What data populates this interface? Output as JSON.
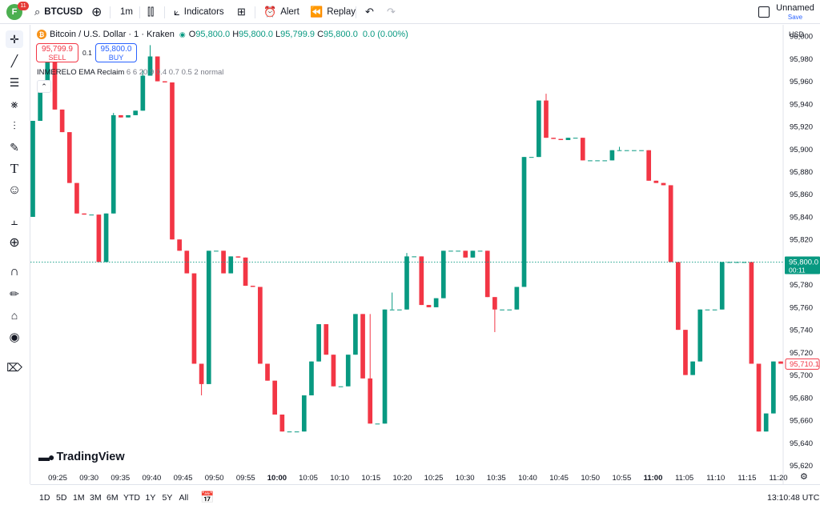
{
  "topbar": {
    "avatar_letter": "F",
    "notifications": "11",
    "symbol": "BTCUSD",
    "interval": "1m",
    "indicators_label": "Indicators",
    "alert_label": "Alert",
    "replay_label": "Replay",
    "layout_name": "Unnamed",
    "save_label": "Save"
  },
  "legend": {
    "title": "Bitcoin / U.S. Dollar · 1 · Kraken",
    "o_label": "O",
    "o_value": "95,800.0",
    "h_label": "H",
    "h_value": "95,800.0",
    "l_label": "L",
    "l_value": "95,799.9",
    "c_label": "C",
    "c_value": "95,800.0",
    "change": "0.0 (0.00%)"
  },
  "trade": {
    "sell_price": "95,799.9",
    "sell_label": "SELL",
    "spread": "0.1",
    "buy_price": "95,800.0",
    "buy_label": "BUY"
  },
  "indicator": {
    "name": "INMERELO EMA Reclaim",
    "params": "6 6 20 9 0.4 0.7 0.5 2 normal"
  },
  "watermark": "TradingView",
  "currency": "USD",
  "price_labels": {
    "current": "95,800.0",
    "countdown": "00:11",
    "alt": "95,710.1"
  },
  "bottombar": {
    "ranges": [
      "1D",
      "5D",
      "1M",
      "3M",
      "6M",
      "YTD",
      "1Y",
      "5Y",
      "All"
    ],
    "clock": "13:10:48 UTC"
  },
  "colors": {
    "up": "#089981",
    "down": "#f23645",
    "up_bright": "#22d08d",
    "line": "#089981"
  },
  "icons": [
    "crosshair-icon",
    "trend-line-icon",
    "fib-icon",
    "pattern-icon",
    "projection-icon",
    "brush-icon",
    "text-icon",
    "emoji-icon",
    "ruler-icon",
    "zoom-in-icon",
    "magnet-icon",
    "lock-drawing-icon",
    "unlock-icon",
    "eye-icon",
    "trash-icon"
  ],
  "chart_data": {
    "type": "candlestick",
    "y_ticks": [
      96000,
      95980,
      95960,
      95940,
      95920,
      95900,
      95880,
      95860,
      95840,
      95820,
      95800,
      95780,
      95760,
      95740,
      95720,
      95700,
      95680,
      95660,
      95640,
      95620
    ],
    "x_ticks": [
      "09:25",
      "09:30",
      "09:35",
      "09:40",
      "09:45",
      "09:50",
      "09:55",
      "10:00",
      "10:05",
      "10:10",
      "10:15",
      "10:20",
      "10:25",
      "10:30",
      "10:35",
      "10:40",
      "10:45",
      "10:50",
      "10:55",
      "11:00",
      "11:05",
      "11:10",
      "11:15",
      "11:20"
    ],
    "x_tick_bold": [
      "10:00",
      "11:00"
    ],
    "ylim": [
      95614,
      96010
    ],
    "current_price": 95800.0,
    "candles": [
      {
        "o": 95840,
        "h": 95925,
        "l": 95840,
        "c": 95925
      },
      {
        "o": 95925,
        "h": 95958,
        "l": 95925,
        "c": 95958
      },
      {
        "o": 95958,
        "h": 95990,
        "l": 95958,
        "c": 95985
      },
      {
        "o": 95990,
        "h": 95990,
        "l": 95935,
        "c": 95935
      },
      {
        "o": 95935,
        "h": 95935,
        "l": 95915,
        "c": 95915
      },
      {
        "o": 95915,
        "h": 95915,
        "l": 95870,
        "c": 95870
      },
      {
        "o": 95870,
        "h": 95870,
        "l": 95843,
        "c": 95843
      },
      {
        "o": 95843,
        "h": 95843,
        "l": 95842,
        "c": 95842
      },
      {
        "o": 95842,
        "h": 95842,
        "l": 95842,
        "c": 95842
      },
      {
        "o": 95842,
        "h": 95842,
        "l": 95800,
        "c": 95800
      },
      {
        "o": 95800,
        "h": 95843,
        "l": 95800,
        "c": 95843
      },
      {
        "o": 95843,
        "h": 95932,
        "l": 95843,
        "c": 95930
      },
      {
        "o": 95930,
        "h": 95930,
        "l": 95928,
        "c": 95928
      },
      {
        "o": 95928,
        "h": 95930,
        "l": 95928,
        "c": 95930
      },
      {
        "o": 95930,
        "h": 95934,
        "l": 95930,
        "c": 95934
      },
      {
        "o": 95934,
        "h": 95970,
        "l": 95934,
        "c": 95965
      },
      {
        "o": 95965,
        "h": 95992,
        "l": 95965,
        "c": 95982
      },
      {
        "o": 95982,
        "h": 95982,
        "l": 95960,
        "c": 95960
      },
      {
        "o": 95960,
        "h": 95960,
        "l": 95959,
        "c": 95959
      },
      {
        "o": 95959,
        "h": 95959,
        "l": 95820,
        "c": 95820
      },
      {
        "o": 95820,
        "h": 95820,
        "l": 95810,
        "c": 95810
      },
      {
        "o": 95810,
        "h": 95810,
        "l": 95790,
        "c": 95790
      },
      {
        "o": 95790,
        "h": 95790,
        "l": 95710,
        "c": 95710
      },
      {
        "o": 95710,
        "h": 95710,
        "l": 95682,
        "c": 95692
      },
      {
        "o": 95692,
        "h": 95810,
        "l": 95692,
        "c": 95810
      },
      {
        "o": 95810,
        "h": 95810,
        "l": 95810,
        "c": 95810
      },
      {
        "o": 95810,
        "h": 95810,
        "l": 95790,
        "c": 95790
      },
      {
        "o": 95790,
        "h": 95805,
        "l": 95790,
        "c": 95805
      },
      {
        "o": 95805,
        "h": 95805,
        "l": 95804,
        "c": 95804
      },
      {
        "o": 95804,
        "h": 95804,
        "l": 95779,
        "c": 95779
      },
      {
        "o": 95779,
        "h": 95779,
        "l": 95778,
        "c": 95778
      },
      {
        "o": 95778,
        "h": 95778,
        "l": 95710,
        "c": 95710
      },
      {
        "o": 95710,
        "h": 95710,
        "l": 95695,
        "c": 95695
      },
      {
        "o": 95695,
        "h": 95695,
        "l": 95665,
        "c": 95665
      },
      {
        "o": 95665,
        "h": 95665,
        "l": 95650,
        "c": 95650
      },
      {
        "o": 95650,
        "h": 95650,
        "l": 95650,
        "c": 95650
      },
      {
        "o": 95650,
        "h": 95650,
        "l": 95650,
        "c": 95650
      },
      {
        "o": 95650,
        "h": 95682,
        "l": 95650,
        "c": 95682
      },
      {
        "o": 95682,
        "h": 95712,
        "l": 95682,
        "c": 95712
      },
      {
        "o": 95712,
        "h": 95745,
        "l": 95712,
        "c": 95745
      },
      {
        "o": 95745,
        "h": 95745,
        "l": 95718,
        "c": 95718
      },
      {
        "o": 95718,
        "h": 95718,
        "l": 95690,
        "c": 95690
      },
      {
        "o": 95690,
        "h": 95690,
        "l": 95690,
        "c": 95690
      },
      {
        "o": 95690,
        "h": 95718,
        "l": 95690,
        "c": 95718
      },
      {
        "o": 95718,
        "h": 95754,
        "l": 95718,
        "c": 95754
      },
      {
        "o": 95754,
        "h": 95754,
        "l": 95697,
        "c": 95697
      },
      {
        "o": 95697,
        "h": 95754,
        "l": 95657,
        "c": 95657
      },
      {
        "o": 95657,
        "h": 95657,
        "l": 95657,
        "c": 95657
      },
      {
        "o": 95657,
        "h": 95758,
        "l": 95657,
        "c": 95758
      },
      {
        "o": 95758,
        "h": 95773,
        "l": 95758,
        "c": 95758
      },
      {
        "o": 95758,
        "h": 95758,
        "l": 95758,
        "c": 95758
      },
      {
        "o": 95758,
        "h": 95808,
        "l": 95758,
        "c": 95805
      },
      {
        "o": 95805,
        "h": 95805,
        "l": 95805,
        "c": 95805
      },
      {
        "o": 95805,
        "h": 95805,
        "l": 95762,
        "c": 95762
      },
      {
        "o": 95762,
        "h": 95762,
        "l": 95760,
        "c": 95760
      },
      {
        "o": 95760,
        "h": 95768,
        "l": 95760,
        "c": 95768
      },
      {
        "o": 95768,
        "h": 95810,
        "l": 95768,
        "c": 95810
      },
      {
        "o": 95810,
        "h": 95810,
        "l": 95810,
        "c": 95810
      },
      {
        "o": 95810,
        "h": 95810,
        "l": 95810,
        "c": 95810
      },
      {
        "o": 95810,
        "h": 95810,
        "l": 95804,
        "c": 95804
      },
      {
        "o": 95804,
        "h": 95810,
        "l": 95804,
        "c": 95810
      },
      {
        "o": 95810,
        "h": 95810,
        "l": 95810,
        "c": 95810
      },
      {
        "o": 95810,
        "h": 95810,
        "l": 95769,
        "c": 95769
      },
      {
        "o": 95769,
        "h": 95769,
        "l": 95738,
        "c": 95758
      },
      {
        "o": 95758,
        "h": 95758,
        "l": 95758,
        "c": 95758
      },
      {
        "o": 95758,
        "h": 95758,
        "l": 95758,
        "c": 95758
      },
      {
        "o": 95758,
        "h": 95778,
        "l": 95758,
        "c": 95778
      },
      {
        "o": 95778,
        "h": 95893,
        "l": 95778,
        "c": 95893
      },
      {
        "o": 95893,
        "h": 95893,
        "l": 95893,
        "c": 95893
      },
      {
        "o": 95893,
        "h": 95943,
        "l": 95893,
        "c": 95943
      },
      {
        "o": 95943,
        "h": 95949,
        "l": 95910,
        "c": 95910
      },
      {
        "o": 95910,
        "h": 95910,
        "l": 95909,
        "c": 95909
      },
      {
        "o": 95909,
        "h": 95909,
        "l": 95908,
        "c": 95908
      },
      {
        "o": 95908,
        "h": 95910,
        "l": 95908,
        "c": 95910
      },
      {
        "o": 95910,
        "h": 95910,
        "l": 95910,
        "c": 95910
      },
      {
        "o": 95910,
        "h": 95910,
        "l": 95890,
        "c": 95890
      },
      {
        "o": 95890,
        "h": 95890,
        "l": 95890,
        "c": 95890
      },
      {
        "o": 95890,
        "h": 95890,
        "l": 95890,
        "c": 95890
      },
      {
        "o": 95890,
        "h": 95890,
        "l": 95890,
        "c": 95890
      },
      {
        "o": 95890,
        "h": 95899,
        "l": 95890,
        "c": 95899
      },
      {
        "o": 95899,
        "h": 95902,
        "l": 95899,
        "c": 95899
      },
      {
        "o": 95899,
        "h": 95899,
        "l": 95899,
        "c": 95899
      },
      {
        "o": 95899,
        "h": 95899,
        "l": 95899,
        "c": 95899
      },
      {
        "o": 95899,
        "h": 95899,
        "l": 95899,
        "c": 95899
      },
      {
        "o": 95899,
        "h": 95899,
        "l": 95872,
        "c": 95872
      },
      {
        "o": 95872,
        "h": 95872,
        "l": 95870,
        "c": 95870
      },
      {
        "o": 95870,
        "h": 95870,
        "l": 95868,
        "c": 95868
      },
      {
        "o": 95868,
        "h": 95868,
        "l": 95800,
        "c": 95800
      },
      {
        "o": 95800,
        "h": 95800,
        "l": 95740,
        "c": 95740
      },
      {
        "o": 95740,
        "h": 95740,
        "l": 95700,
        "c": 95700
      },
      {
        "o": 95700,
        "h": 95712,
        "l": 95700,
        "c": 95712
      },
      {
        "o": 95712,
        "h": 95758,
        "l": 95712,
        "c": 95758
      },
      {
        "o": 95758,
        "h": 95758,
        "l": 95758,
        "c": 95758
      },
      {
        "o": 95758,
        "h": 95758,
        "l": 95758,
        "c": 95758
      },
      {
        "o": 95758,
        "h": 95800,
        "l": 95758,
        "c": 95800
      },
      {
        "o": 95800,
        "h": 95800,
        "l": 95800,
        "c": 95800
      },
      {
        "o": 95800,
        "h": 95800,
        "l": 95800,
        "c": 95800
      },
      {
        "o": 95800,
        "h": 95800,
        "l": 95800,
        "c": 95800
      },
      {
        "o": 95800,
        "h": 95800,
        "l": 95710,
        "c": 95710
      },
      {
        "o": 95710,
        "h": 95710,
        "l": 95650,
        "c": 95650
      },
      {
        "o": 95650,
        "h": 95666,
        "l": 95650,
        "c": 95666
      },
      {
        "o": 95666,
        "h": 95712,
        "l": 95666,
        "c": 95712
      },
      {
        "o": 95712,
        "h": 95712,
        "l": 95710,
        "c": 95710
      }
    ]
  }
}
